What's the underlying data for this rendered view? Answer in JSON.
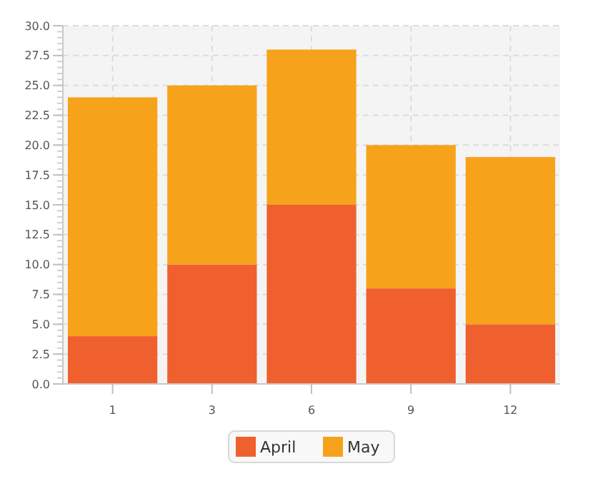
{
  "chart_data": {
    "type": "bar",
    "stacked": true,
    "categories": [
      "1",
      "3",
      "6",
      "9",
      "12"
    ],
    "series": [
      {
        "name": "April",
        "color": "#f0602f",
        "values": [
          4,
          10,
          15,
          8,
          5
        ]
      },
      {
        "name": "May",
        "color": "#f7a21b",
        "values": [
          20,
          15,
          13,
          12,
          14
        ]
      }
    ],
    "ylim": [
      0,
      30
    ],
    "yticks": [
      {
        "value": 0,
        "label": "0.0"
      },
      {
        "value": 2.5,
        "label": "2.5"
      },
      {
        "value": 5,
        "label": "5.0"
      },
      {
        "value": 7.5,
        "label": "7.5"
      },
      {
        "value": 10,
        "label": "10.0"
      },
      {
        "value": 12.5,
        "label": "12.5"
      },
      {
        "value": 15,
        "label": "15.0"
      },
      {
        "value": 17.5,
        "label": "17.5"
      },
      {
        "value": 20,
        "label": "20.0"
      },
      {
        "value": 22.5,
        "label": "22.5"
      },
      {
        "value": 25,
        "label": "25.0"
      },
      {
        "value": 27.5,
        "label": "27.5"
      },
      {
        "value": 30,
        "label": "30.0"
      }
    ],
    "grid": true,
    "legend": "bottom"
  }
}
